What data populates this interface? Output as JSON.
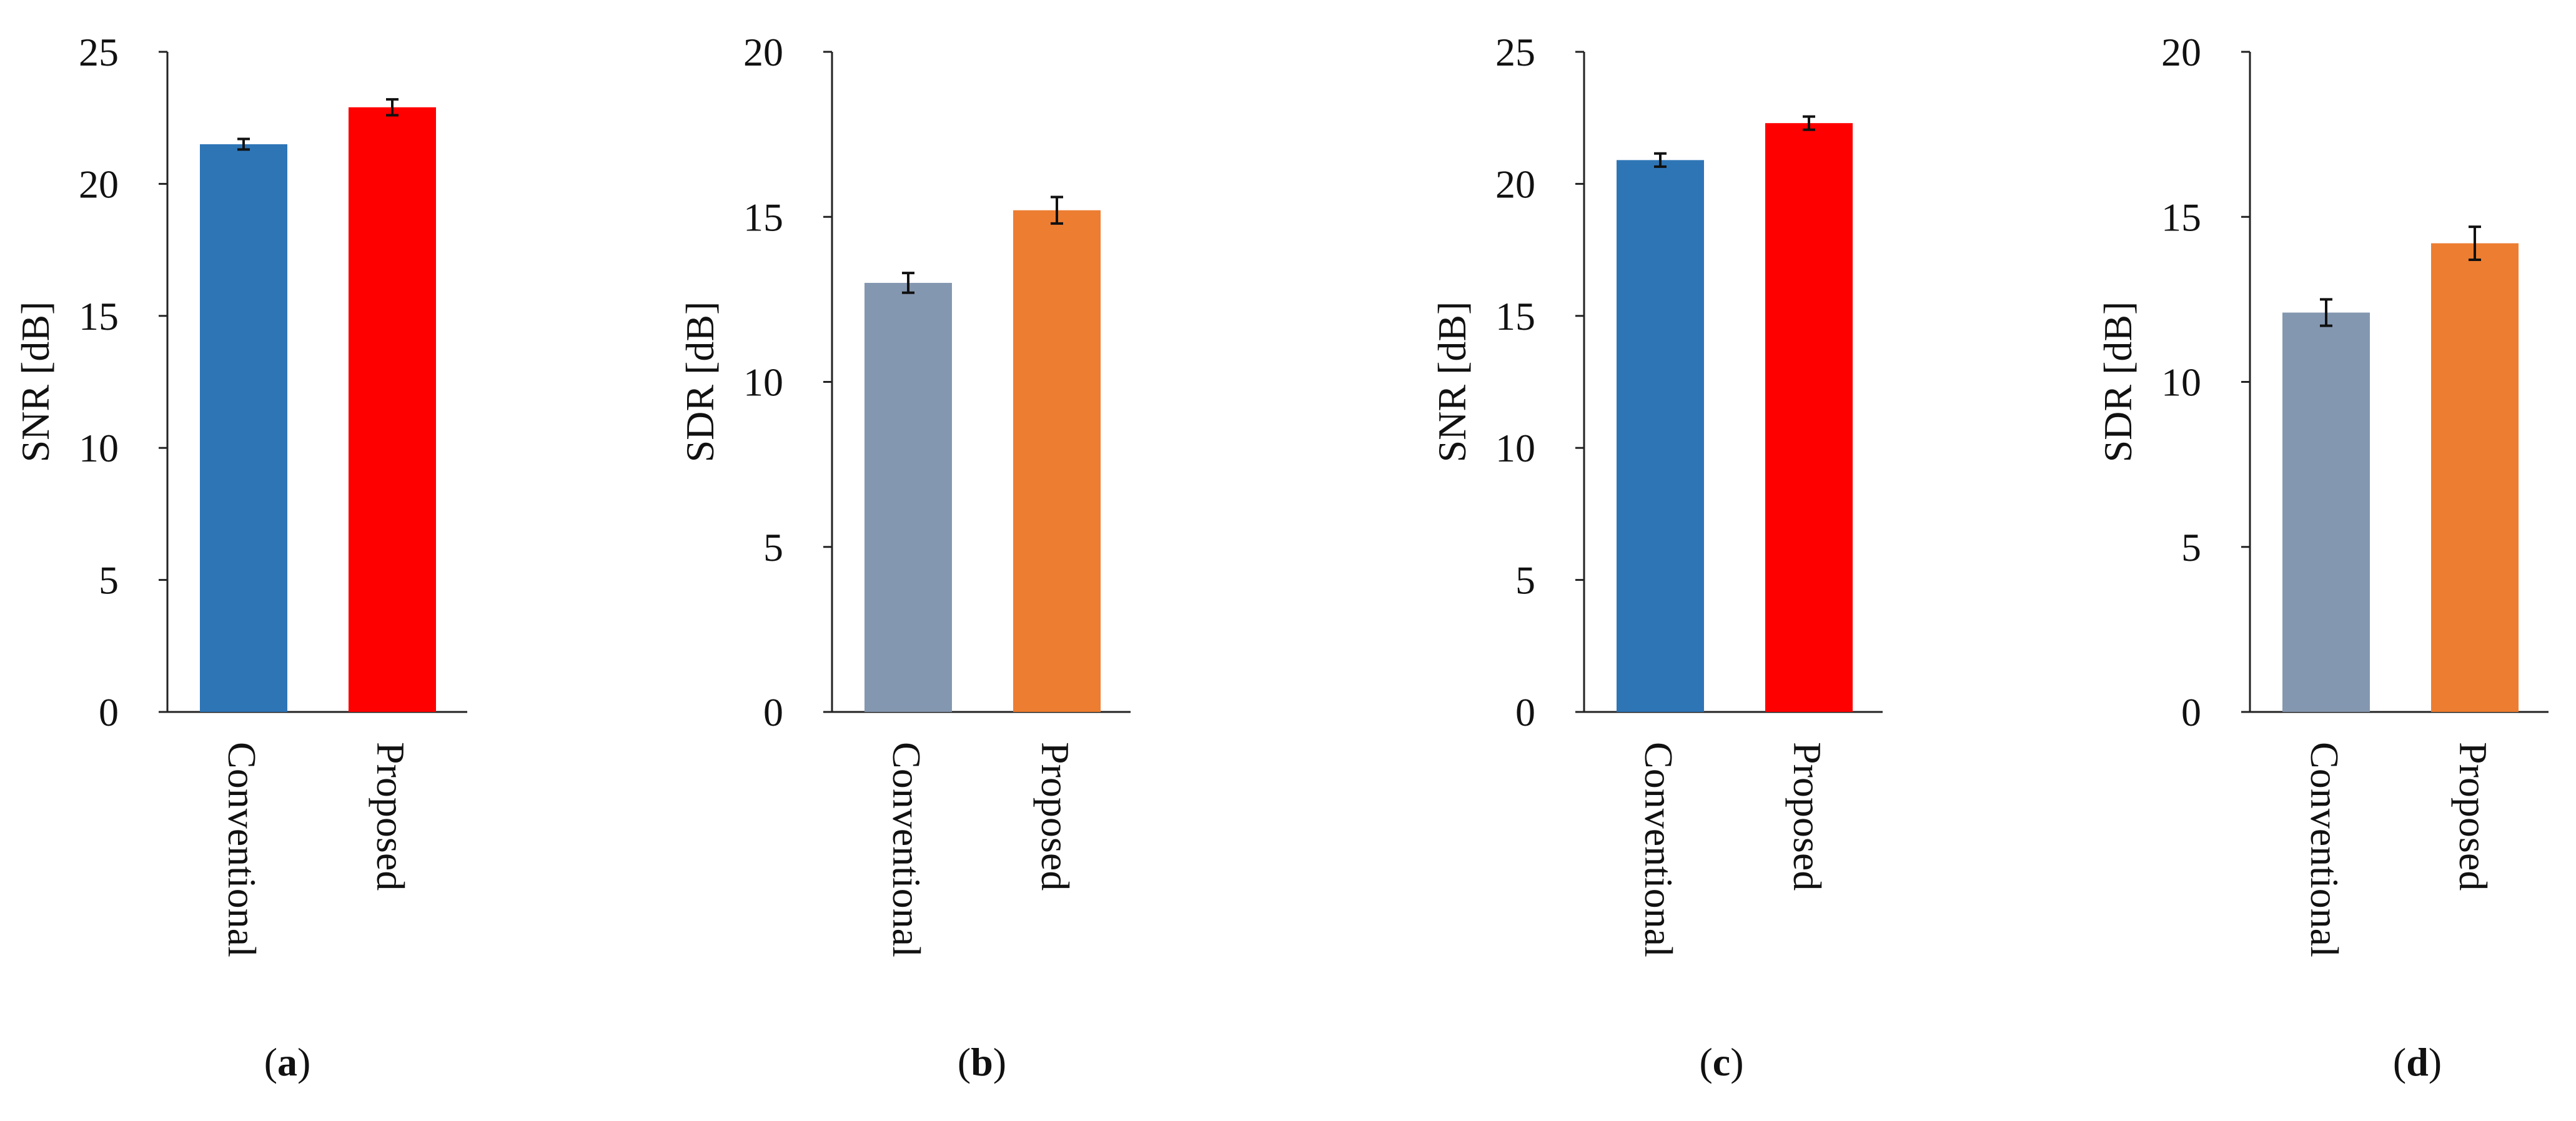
{
  "chart_data": [
    {
      "type": "bar",
      "panel": "a",
      "categories": [
        "Conventional",
        "Proposed"
      ],
      "values": [
        21.5,
        22.9
      ],
      "errors": [
        0.2,
        0.3
      ],
      "colors": [
        "#2e75b6",
        "#ff0000"
      ],
      "ylabel": "SNR [dB]",
      "ylim": [
        0,
        25
      ],
      "yticks": [
        "0",
        "5",
        "10",
        "15",
        "20",
        "25"
      ],
      "caption_open": "(",
      "caption_letter": "a",
      "caption_close": ")"
    },
    {
      "type": "bar",
      "panel": "b",
      "categories": [
        "Conventional",
        "Proposed"
      ],
      "values": [
        13.0,
        15.2
      ],
      "errors": [
        0.3,
        0.4
      ],
      "colors": [
        "#8497b0",
        "#ed7d31"
      ],
      "ylabel": "SDR [dB]",
      "ylim": [
        0,
        20
      ],
      "yticks": [
        "0",
        "5",
        "10",
        "15",
        "20"
      ],
      "caption_open": "(",
      "caption_letter": "b",
      "caption_close": ")"
    },
    {
      "type": "bar",
      "panel": "c",
      "categories": [
        "Conventional",
        "Proposed"
      ],
      "values": [
        20.9,
        22.3
      ],
      "errors": [
        0.25,
        0.25
      ],
      "colors": [
        "#2e75b6",
        "#ff0000"
      ],
      "ylabel": "SNR [dB]",
      "ylim": [
        0,
        25
      ],
      "yticks": [
        "0",
        "5",
        "10",
        "15",
        "20",
        "25"
      ],
      "caption_open": "(",
      "caption_letter": "c",
      "caption_close": ")"
    },
    {
      "type": "bar",
      "panel": "d",
      "categories": [
        "Conventional",
        "Proposed"
      ],
      "values": [
        12.1,
        14.2
      ],
      "errors": [
        0.4,
        0.5
      ],
      "colors": [
        "#8497b0",
        "#ed7d31"
      ],
      "ylabel": "SDR [dB]",
      "ylim": [
        0,
        20
      ],
      "yticks": [
        "0",
        "5",
        "10",
        "15",
        "20"
      ],
      "caption_open": "(",
      "caption_letter": "d",
      "caption_close": ")"
    }
  ]
}
